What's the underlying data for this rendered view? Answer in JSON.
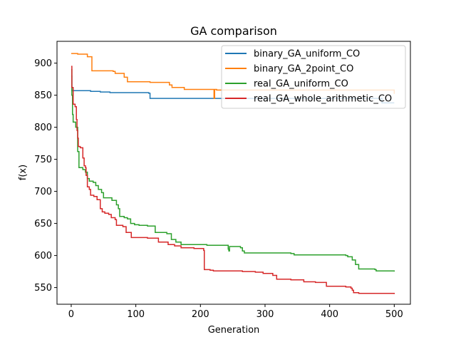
{
  "chart_data": {
    "type": "line",
    "title": "GA comparison",
    "xlabel": "Generation",
    "ylabel": "f(x)",
    "xlim": [
      -22,
      525
    ],
    "ylim": [
      524,
      934
    ],
    "xticks": [
      0,
      100,
      200,
      300,
      400,
      500
    ],
    "yticks": [
      550,
      600,
      650,
      700,
      750,
      800,
      850,
      900
    ],
    "legend_position": "upper right",
    "grid": false,
    "series": [
      {
        "name": "binary_GA_uniform_CO",
        "color": "#1f77b4",
        "step": true,
        "points": [
          [
            0,
            880
          ],
          [
            1,
            857
          ],
          [
            30,
            856
          ],
          [
            45,
            855
          ],
          [
            60,
            854
          ],
          [
            120,
            853
          ],
          [
            122,
            845
          ],
          [
            480,
            845
          ],
          [
            481,
            838
          ],
          [
            500,
            838
          ]
        ]
      },
      {
        "name": "binary_GA_2point_CO",
        "color": "#ff7f0e",
        "step": true,
        "points": [
          [
            0,
            915
          ],
          [
            10,
            914
          ],
          [
            25,
            910
          ],
          [
            32,
            888
          ],
          [
            65,
            887
          ],
          [
            68,
            884
          ],
          [
            82,
            878
          ],
          [
            87,
            871
          ],
          [
            122,
            870
          ],
          [
            152,
            866
          ],
          [
            156,
            862
          ],
          [
            175,
            859
          ],
          [
            220,
            859
          ],
          [
            221,
            845
          ],
          [
            222,
            859
          ],
          [
            225,
            858
          ],
          [
            500,
            852
          ]
        ]
      },
      {
        "name": "real_GA_uniform_CO",
        "color": "#2ca02c",
        "step": true,
        "points": [
          [
            0,
            890
          ],
          [
            1,
            850
          ],
          [
            2,
            820
          ],
          [
            3,
            808
          ],
          [
            7,
            800
          ],
          [
            10,
            762
          ],
          [
            12,
            737
          ],
          [
            18,
            734
          ],
          [
            22,
            730
          ],
          [
            25,
            720
          ],
          [
            28,
            716
          ],
          [
            34,
            714
          ],
          [
            38,
            709
          ],
          [
            42,
            703
          ],
          [
            47,
            698
          ],
          [
            50,
            690
          ],
          [
            63,
            686
          ],
          [
            70,
            679
          ],
          [
            73,
            673
          ],
          [
            75,
            661
          ],
          [
            82,
            659
          ],
          [
            87,
            657
          ],
          [
            92,
            650
          ],
          [
            98,
            648
          ],
          [
            105,
            647
          ],
          [
            118,
            646
          ],
          [
            130,
            636
          ],
          [
            148,
            634
          ],
          [
            155,
            625
          ],
          [
            162,
            621
          ],
          [
            170,
            617
          ],
          [
            210,
            616
          ],
          [
            243,
            610
          ],
          [
            244,
            607
          ],
          [
            245,
            614
          ],
          [
            262,
            612
          ],
          [
            265,
            607
          ],
          [
            268,
            604
          ],
          [
            340,
            603
          ],
          [
            345,
            601
          ],
          [
            425,
            600
          ],
          [
            428,
            598
          ],
          [
            435,
            593
          ],
          [
            440,
            586
          ],
          [
            445,
            579
          ],
          [
            470,
            578
          ],
          [
            472,
            576
          ],
          [
            500,
            575
          ]
        ]
      },
      {
        "name": "real_GA_whole_arithmetic_CO",
        "color": "#d62728",
        "step": true,
        "points": [
          [
            0,
            895
          ],
          [
            1,
            862
          ],
          [
            3,
            836
          ],
          [
            6,
            832
          ],
          [
            8,
            812
          ],
          [
            9,
            795
          ],
          [
            10,
            783
          ],
          [
            11,
            770
          ],
          [
            14,
            768
          ],
          [
            18,
            752
          ],
          [
            20,
            740
          ],
          [
            22,
            737
          ],
          [
            23,
            725
          ],
          [
            25,
            707
          ],
          [
            28,
            703
          ],
          [
            30,
            694
          ],
          [
            35,
            692
          ],
          [
            40,
            687
          ],
          [
            45,
            673
          ],
          [
            48,
            668
          ],
          [
            52,
            666
          ],
          [
            58,
            664
          ],
          [
            62,
            659
          ],
          [
            68,
            656
          ],
          [
            70,
            647
          ],
          [
            80,
            645
          ],
          [
            85,
            636
          ],
          [
            93,
            628
          ],
          [
            118,
            627
          ],
          [
            135,
            621
          ],
          [
            150,
            617
          ],
          [
            160,
            615
          ],
          [
            170,
            612
          ],
          [
            190,
            611
          ],
          [
            205,
            608
          ],
          [
            206,
            578
          ],
          [
            215,
            577
          ],
          [
            220,
            576
          ],
          [
            265,
            575
          ],
          [
            285,
            574
          ],
          [
            297,
            572
          ],
          [
            312,
            569
          ],
          [
            318,
            563
          ],
          [
            340,
            562
          ],
          [
            360,
            559
          ],
          [
            378,
            558
          ],
          [
            395,
            552
          ],
          [
            425,
            551
          ],
          [
            433,
            549
          ],
          [
            435,
            546
          ],
          [
            437,
            542
          ],
          [
            445,
            541
          ],
          [
            500,
            540
          ]
        ]
      }
    ]
  }
}
